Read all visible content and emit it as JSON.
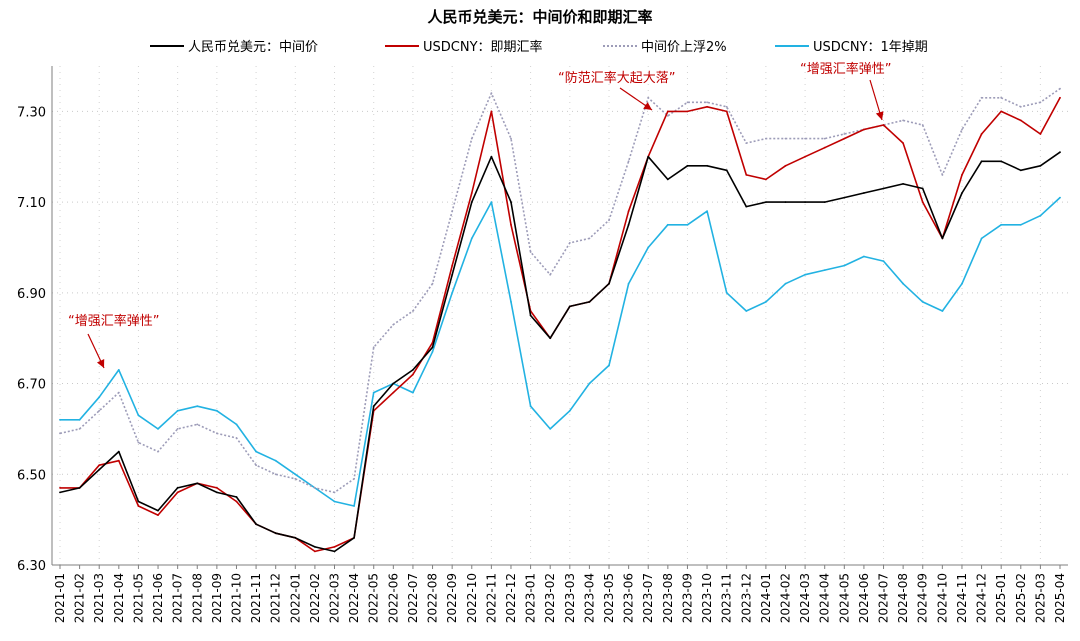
{
  "chart_data": {
    "type": "line",
    "title": "人民币兑美元：中间价和即期汇率",
    "xlabel": "",
    "ylabel": "",
    "ylim": [
      6.3,
      7.4
    ],
    "yticks": [
      "6.30",
      "6.50",
      "6.70",
      "6.90",
      "7.10",
      "7.30"
    ],
    "grid": "dotted",
    "legend_position": "top",
    "categories": [
      "2021-01",
      "2021-02",
      "2021-03",
      "2021-04",
      "2021-05",
      "2021-06",
      "2021-07",
      "2021-08",
      "2021-09",
      "2021-10",
      "2021-11",
      "2021-12",
      "2022-01",
      "2022-02",
      "2022-03",
      "2022-04",
      "2022-05",
      "2022-06",
      "2022-07",
      "2022-08",
      "2022-09",
      "2022-10",
      "2022-11",
      "2022-12",
      "2023-01",
      "2023-02",
      "2023-03",
      "2023-04",
      "2023-05",
      "2023-06",
      "2023-07",
      "2023-08",
      "2023-09",
      "2023-10",
      "2023-11",
      "2023-12",
      "2024-01",
      "2024-02",
      "2024-03",
      "2024-04",
      "2024-05",
      "2024-06",
      "2024-07",
      "2024-08",
      "2024-09",
      "2024-10",
      "2024-11",
      "2024-12",
      "2025-01",
      "2025-02",
      "2025-03",
      "2025-04"
    ],
    "series": [
      {
        "name": "人民币兑美元：中间价",
        "color": "#000000",
        "dash": "",
        "values": [
          6.46,
          6.47,
          6.51,
          6.55,
          6.44,
          6.42,
          6.47,
          6.48,
          6.46,
          6.45,
          6.39,
          6.37,
          6.36,
          6.34,
          6.33,
          6.36,
          6.65,
          6.7,
          6.73,
          6.78,
          6.94,
          7.1,
          7.2,
          7.1,
          6.85,
          6.8,
          6.87,
          6.88,
          6.92,
          7.05,
          7.2,
          7.15,
          7.18,
          7.18,
          7.17,
          7.09,
          7.1,
          7.1,
          7.1,
          7.1,
          7.11,
          7.12,
          7.13,
          7.14,
          7.13,
          7.02,
          7.12,
          7.19,
          7.19,
          7.17,
          7.18,
          7.21
        ]
      },
      {
        "name": "USDCNY：即期汇率",
        "color": "#c00000",
        "dash": "",
        "values": [
          6.47,
          6.47,
          6.52,
          6.53,
          6.43,
          6.41,
          6.46,
          6.48,
          6.47,
          6.44,
          6.39,
          6.37,
          6.36,
          6.33,
          6.34,
          6.36,
          6.64,
          6.68,
          6.72,
          6.79,
          6.96,
          7.12,
          7.3,
          7.05,
          6.86,
          6.8,
          6.87,
          6.88,
          6.92,
          7.08,
          7.2,
          7.3,
          7.3,
          7.31,
          7.3,
          7.16,
          7.15,
          7.18,
          7.2,
          7.22,
          7.24,
          7.26,
          7.27,
          7.23,
          7.1,
          7.02,
          7.16,
          7.25,
          7.3,
          7.28,
          7.25,
          7.33
        ]
      },
      {
        "name": "中间价上浮2%",
        "color": "#9d9cb8",
        "dash": "2,2",
        "values": [
          6.59,
          6.6,
          6.64,
          6.68,
          6.57,
          6.55,
          6.6,
          6.61,
          6.59,
          6.58,
          6.52,
          6.5,
          6.49,
          6.47,
          6.46,
          6.49,
          6.78,
          6.83,
          6.86,
          6.92,
          7.08,
          7.24,
          7.34,
          7.24,
          6.99,
          6.94,
          7.01,
          7.02,
          7.06,
          7.19,
          7.33,
          7.29,
          7.32,
          7.32,
          7.31,
          7.23,
          7.24,
          7.24,
          7.24,
          7.24,
          7.25,
          7.26,
          7.27,
          7.28,
          7.27,
          7.16,
          7.26,
          7.33,
          7.33,
          7.31,
          7.32,
          7.35
        ]
      },
      {
        "name": "USDCNY：1年掉期",
        "color": "#22b2e2",
        "dash": "",
        "values": [
          6.62,
          6.62,
          6.67,
          6.73,
          6.63,
          6.6,
          6.64,
          6.65,
          6.64,
          6.61,
          6.55,
          6.53,
          6.5,
          6.47,
          6.44,
          6.43,
          6.68,
          6.7,
          6.68,
          6.77,
          6.9,
          7.02,
          7.1,
          6.88,
          6.65,
          6.6,
          6.64,
          6.7,
          6.74,
          6.92,
          7.0,
          7.05,
          7.05,
          7.08,
          6.9,
          6.86,
          6.88,
          6.92,
          6.94,
          6.95,
          6.96,
          6.98,
          6.97,
          6.92,
          6.88,
          6.86,
          6.92,
          7.02,
          7.05,
          7.05,
          7.07,
          7.11
        ]
      }
    ],
    "annotations": [
      {
        "text": "“增强汇率弹性”",
        "category": "2021-03",
        "value": 6.745
      },
      {
        "text": "“防范汇率大起大落”",
        "category": "2023-08",
        "value": 7.295
      },
      {
        "text": "“增强汇率弹性”",
        "category": "2024-07",
        "value": 7.275
      }
    ],
    "annotation_color": "#c00000"
  }
}
